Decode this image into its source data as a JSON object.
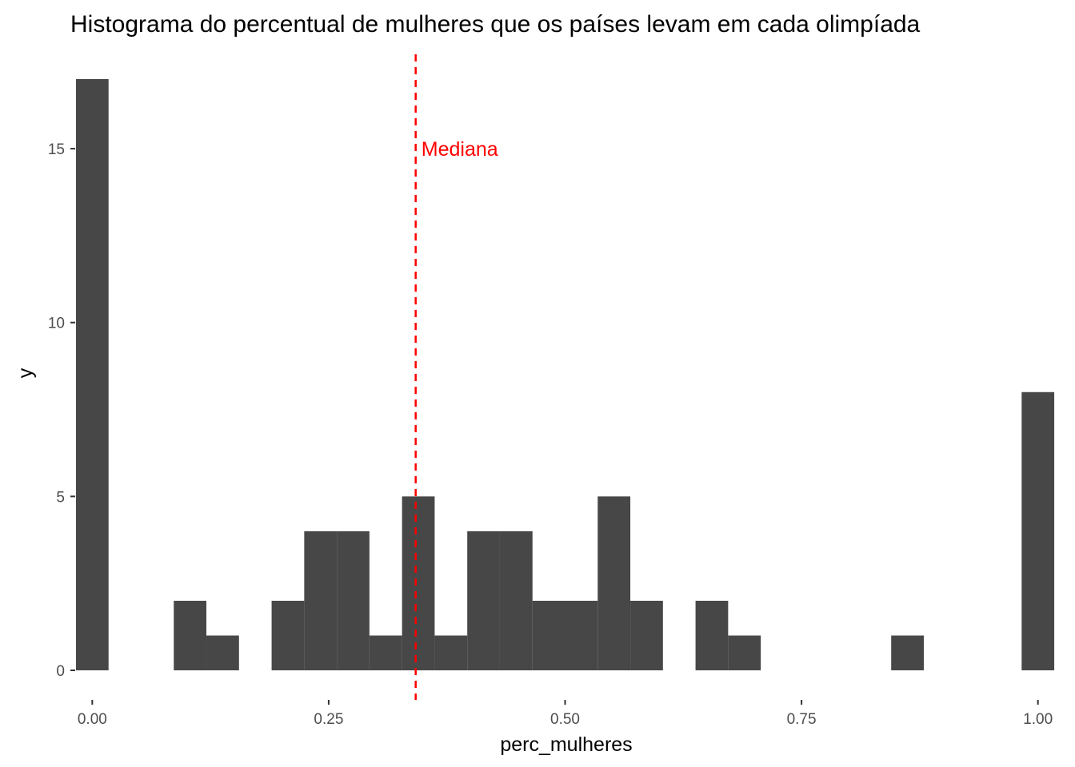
{
  "chart_data": {
    "type": "bar",
    "subtype": "histogram",
    "title": "Histograma do percentual de mulheres que os países levam em cada olimpíada",
    "xlabel": "perc_mulheres",
    "ylabel": "y",
    "xlim": [
      -0.0172,
      1.0172
    ],
    "ylim": [
      -0.85,
      17.85
    ],
    "x_ticks": [
      0,
      0.25,
      0.5,
      0.75,
      1
    ],
    "x_tick_labels": [
      "0.00",
      "0.25",
      "0.50",
      "0.75",
      "1.00"
    ],
    "y_ticks": [
      0,
      5,
      10,
      15
    ],
    "y_tick_labels": [
      "0",
      "5",
      "10",
      "15"
    ],
    "bin_width": 0.03448,
    "bin_centers": [
      0,
      0.03448,
      0.06897,
      0.10345,
      0.13793,
      0.17241,
      0.2069,
      0.24138,
      0.27586,
      0.31034,
      0.34483,
      0.37931,
      0.41379,
      0.44828,
      0.48276,
      0.51724,
      0.55172,
      0.58621,
      0.62069,
      0.65517,
      0.68966,
      0.72414,
      0.75862,
      0.7931,
      0.82759,
      0.86207,
      0.89655,
      0.93103,
      0.96552,
      1.0
    ],
    "counts": [
      17,
      0,
      0,
      2,
      1,
      0,
      2,
      4,
      4,
      1,
      5,
      1,
      4,
      4,
      2,
      2,
      5,
      2,
      0,
      2,
      1,
      0,
      0,
      0,
      0,
      1,
      0,
      0,
      0,
      8
    ],
    "bar_color": "#474747",
    "grid": false,
    "background": "#ffffff",
    "annotations": [
      {
        "type": "vline",
        "x": 0.342,
        "color": "#ff0000",
        "style": "dashed"
      },
      {
        "type": "text",
        "text": "Mediana",
        "x": 0.348,
        "y": 15,
        "color": "#ff0000"
      }
    ]
  }
}
